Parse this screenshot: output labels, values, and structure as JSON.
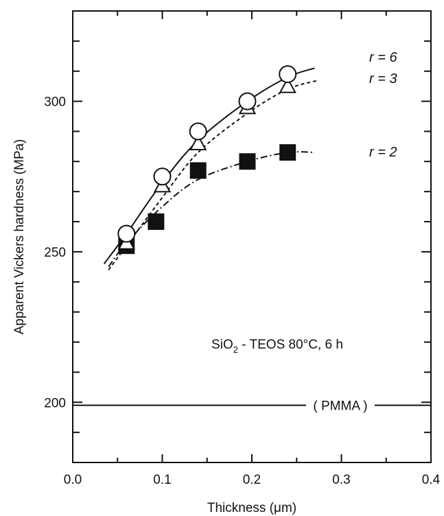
{
  "chart_data": {
    "type": "scatter",
    "xlabel": "Thickness (μm)",
    "ylabel": "Apparent Vickers hardness (MPa)",
    "xlim": [
      0.0,
      0.4
    ],
    "ylim": [
      180,
      330
    ],
    "x_ticks": [
      "0.0",
      "0.1",
      "0.2",
      "0.3",
      "0.4"
    ],
    "y_ticks": [
      "200",
      "250",
      "300"
    ],
    "grid": false,
    "series": [
      {
        "name": "r = 6",
        "marker": "open-circle",
        "line": "solid",
        "points": [
          [
            0.06,
            256
          ],
          [
            0.1,
            275
          ],
          [
            0.14,
            290
          ],
          [
            0.195,
            300
          ],
          [
            0.24,
            309
          ]
        ],
        "curve": [
          [
            0.035,
            246
          ],
          [
            0.06,
            256
          ],
          [
            0.1,
            273
          ],
          [
            0.14,
            287
          ],
          [
            0.195,
            300
          ],
          [
            0.24,
            308
          ],
          [
            0.27,
            311
          ]
        ]
      },
      {
        "name": "r = 3",
        "marker": "open-triangle",
        "line": "dashed",
        "points": [
          [
            0.06,
            253
          ],
          [
            0.1,
            272
          ],
          [
            0.14,
            286
          ],
          [
            0.195,
            298
          ],
          [
            0.24,
            305
          ]
        ],
        "curve": [
          [
            0.04,
            244
          ],
          [
            0.06,
            252
          ],
          [
            0.1,
            268
          ],
          [
            0.14,
            283
          ],
          [
            0.195,
            296
          ],
          [
            0.24,
            304
          ],
          [
            0.275,
            307
          ]
        ]
      },
      {
        "name": "r = 2",
        "marker": "filled-square",
        "line": "dash-dot",
        "points": [
          [
            0.06,
            252
          ],
          [
            0.093,
            260
          ],
          [
            0.14,
            277
          ],
          [
            0.195,
            280
          ],
          [
            0.24,
            283
          ]
        ],
        "curve": [
          [
            0.04,
            245
          ],
          [
            0.06,
            253
          ],
          [
            0.1,
            265
          ],
          [
            0.14,
            274
          ],
          [
            0.195,
            280
          ],
          [
            0.24,
            283
          ],
          [
            0.27,
            283
          ]
        ]
      }
    ],
    "reference_line": {
      "label": "PMMA",
      "text": "( PMMA )",
      "y": 199
    },
    "annotation": {
      "prefix": "SiO",
      "subscript": "2",
      "suffix": " - TEOS 80°C, 6 h"
    }
  }
}
